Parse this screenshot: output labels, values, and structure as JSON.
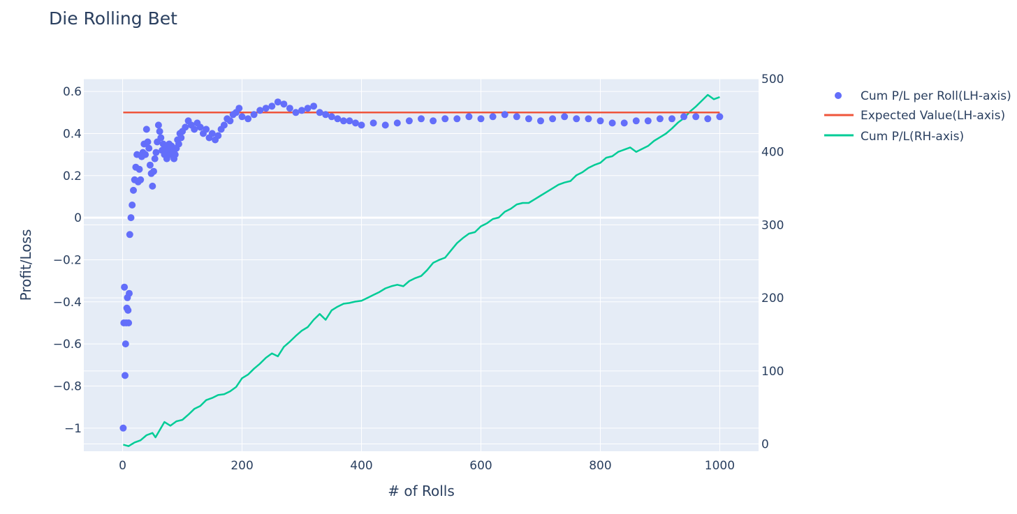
{
  "chart_data": {
    "type": "line",
    "title": "Die Rolling Bet",
    "xlabel": "# of Rolls",
    "ylabel": "Profit/Loss",
    "y2label": "",
    "xlim": [
      -65,
      1065
    ],
    "ylim": [
      -1.11,
      0.66
    ],
    "y2lim": [
      -10,
      500
    ],
    "x_ticks": [
      0,
      200,
      400,
      600,
      800,
      1000
    ],
    "x_tick_labels": [
      "0",
      "200",
      "400",
      "600",
      "800",
      "1000"
    ],
    "y_ticks": [
      -1,
      -0.8,
      -0.6,
      -0.4,
      -0.2,
      0,
      0.2,
      0.4,
      0.6
    ],
    "y_tick_labels": [
      "−1",
      "−0.8",
      "−0.6",
      "−0.4",
      "−0.2",
      "0",
      "0.2",
      "0.4",
      "0.6"
    ],
    "y2_ticks": [
      0,
      100,
      200,
      300,
      400,
      500
    ],
    "y2_tick_labels": [
      "0",
      "100",
      "200",
      "300",
      "400",
      "500"
    ],
    "grid": true,
    "legend_position": "top-right",
    "colors": {
      "plot_bg": "#e5ecf6",
      "grid": "#ffffff",
      "markers": "#636efa",
      "expected": "#ef553b",
      "cum": "#00cc96"
    },
    "series": [
      {
        "name": "Cum P/L per Roll(LH-axis)",
        "mode": "markers",
        "axis": "left",
        "x": [
          1,
          2,
          3,
          4,
          5,
          6,
          7,
          8,
          9,
          10,
          11,
          12,
          14,
          16,
          18,
          20,
          22,
          24,
          26,
          28,
          30,
          32,
          34,
          36,
          38,
          40,
          42,
          44,
          46,
          48,
          50,
          52,
          54,
          56,
          58,
          60,
          62,
          64,
          66,
          68,
          70,
          72,
          74,
          76,
          78,
          80,
          82,
          84,
          86,
          88,
          90,
          92,
          94,
          96,
          98,
          100,
          105,
          110,
          115,
          120,
          125,
          130,
          135,
          140,
          145,
          150,
          155,
          160,
          165,
          170,
          175,
          180,
          185,
          190,
          195,
          200,
          210,
          220,
          230,
          240,
          250,
          260,
          270,
          280,
          290,
          300,
          310,
          320,
          330,
          340,
          350,
          360,
          370,
          380,
          390,
          400,
          420,
          440,
          460,
          480,
          500,
          520,
          540,
          560,
          580,
          600,
          620,
          640,
          660,
          680,
          700,
          720,
          740,
          760,
          780,
          800,
          820,
          840,
          860,
          880,
          900,
          920,
          940,
          960,
          980,
          1000
        ],
        "values": [
          -1.0,
          -0.5,
          -0.33,
          -0.75,
          -0.6,
          -0.5,
          -0.43,
          -0.38,
          -0.44,
          -0.5,
          -0.36,
          -0.08,
          0.0,
          0.06,
          0.13,
          0.18,
          0.24,
          0.3,
          0.17,
          0.23,
          0.18,
          0.29,
          0.31,
          0.35,
          0.3,
          0.42,
          0.36,
          0.33,
          0.25,
          0.21,
          0.15,
          0.22,
          0.28,
          0.31,
          0.36,
          0.44,
          0.41,
          0.38,
          0.32,
          0.35,
          0.3,
          0.33,
          0.28,
          0.32,
          0.35,
          0.3,
          0.34,
          0.31,
          0.28,
          0.3,
          0.33,
          0.37,
          0.35,
          0.4,
          0.38,
          0.41,
          0.43,
          0.46,
          0.44,
          0.42,
          0.45,
          0.43,
          0.4,
          0.42,
          0.38,
          0.4,
          0.37,
          0.39,
          0.42,
          0.44,
          0.47,
          0.46,
          0.49,
          0.5,
          0.52,
          0.48,
          0.47,
          0.49,
          0.51,
          0.52,
          0.53,
          0.55,
          0.54,
          0.52,
          0.5,
          0.51,
          0.52,
          0.53,
          0.5,
          0.49,
          0.48,
          0.47,
          0.46,
          0.46,
          0.45,
          0.44,
          0.45,
          0.44,
          0.45,
          0.46,
          0.47,
          0.46,
          0.47,
          0.47,
          0.48,
          0.47,
          0.48,
          0.49,
          0.48,
          0.47,
          0.46,
          0.47,
          0.48,
          0.47,
          0.47,
          0.46,
          0.45,
          0.45,
          0.46,
          0.46,
          0.47,
          0.47,
          0.48,
          0.48,
          0.47,
          0.48
        ]
      },
      {
        "name": "Expected Value(LH-axis)",
        "mode": "line",
        "axis": "left",
        "x": [
          1,
          1000
        ],
        "values": [
          0.5,
          0.5
        ]
      },
      {
        "name": "Cum P/L(RH-axis)",
        "mode": "line",
        "axis": "right",
        "x": [
          1,
          10,
          20,
          30,
          40,
          50,
          55,
          60,
          70,
          80,
          90,
          100,
          110,
          120,
          130,
          140,
          150,
          160,
          170,
          180,
          190,
          200,
          210,
          220,
          230,
          240,
          250,
          260,
          270,
          280,
          290,
          300,
          310,
          320,
          330,
          340,
          350,
          360,
          370,
          380,
          390,
          400,
          410,
          420,
          430,
          440,
          450,
          460,
          470,
          480,
          490,
          500,
          510,
          520,
          530,
          540,
          550,
          560,
          570,
          580,
          590,
          600,
          610,
          620,
          630,
          640,
          650,
          660,
          670,
          680,
          690,
          700,
          710,
          720,
          730,
          740,
          750,
          760,
          770,
          780,
          790,
          800,
          810,
          820,
          830,
          840,
          850,
          860,
          870,
          880,
          890,
          900,
          910,
          920,
          930,
          940,
          950,
          960,
          970,
          980,
          990,
          1000
        ],
        "values": [
          -1,
          -3,
          2,
          5,
          12,
          15,
          9,
          16,
          30,
          25,
          31,
          33,
          40,
          48,
          52,
          60,
          63,
          67,
          68,
          72,
          78,
          90,
          95,
          103,
          110,
          118,
          124,
          120,
          133,
          140,
          148,
          155,
          160,
          170,
          178,
          170,
          183,
          188,
          192,
          193,
          195,
          196,
          200,
          204,
          208,
          213,
          216,
          218,
          216,
          223,
          227,
          230,
          238,
          248,
          252,
          255,
          265,
          275,
          282,
          288,
          290,
          298,
          302,
          308,
          310,
          318,
          322,
          328,
          330,
          330,
          335,
          340,
          345,
          350,
          355,
          358,
          360,
          368,
          372,
          378,
          382,
          385,
          392,
          394,
          400,
          403,
          406,
          400,
          404,
          408,
          415,
          420,
          425,
          432,
          440,
          446,
          455,
          462,
          470,
          478,
          472,
          475
        ]
      }
    ]
  }
}
